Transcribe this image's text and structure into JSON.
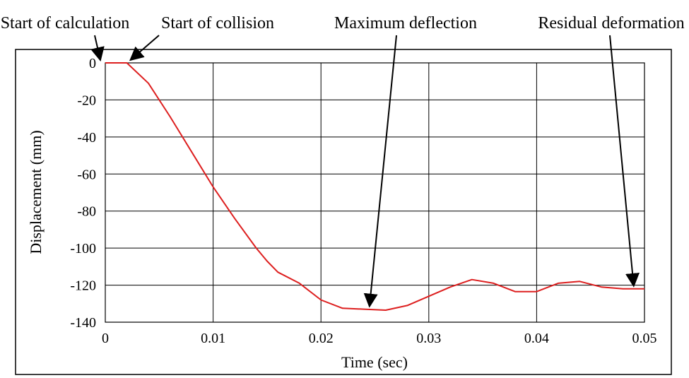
{
  "chart_data": {
    "type": "line",
    "xlabel": "Time (sec)",
    "ylabel": "Displacement (mm)",
    "xlim": [
      0,
      0.05
    ],
    "ylim": [
      -140,
      0
    ],
    "x_ticks": [
      0,
      0.01,
      0.02,
      0.03,
      0.04,
      0.05
    ],
    "x_tick_labels": [
      "0",
      "0.01",
      "0.02",
      "0.03",
      "0.04",
      "0.05"
    ],
    "y_ticks": [
      0,
      -20,
      -40,
      -60,
      -80,
      -100,
      -120,
      -140
    ],
    "y_tick_labels": [
      "0",
      "-20",
      "-40",
      "-60",
      "-80",
      "-100",
      "-120",
      "-140"
    ],
    "grid": true,
    "series": [
      {
        "color": "#dd1f1f",
        "x": [
          0,
          0.002,
          0.004,
          0.006,
          0.008,
          0.01,
          0.012,
          0.014,
          0.015,
          0.016,
          0.018,
          0.02,
          0.022,
          0.024,
          0.026,
          0.028,
          0.03,
          0.032,
          0.034,
          0.036,
          0.038,
          0.04,
          0.042,
          0.044,
          0.046,
          0.048,
          0.05
        ],
        "y": [
          0,
          0,
          -11,
          -29,
          -48,
          -67,
          -84,
          -100,
          -107,
          -113,
          -119,
          -128,
          -132.5,
          -133,
          -133.5,
          -131,
          -126,
          -121,
          -117,
          -119,
          -123.5,
          -123.5,
          -119,
          -118,
          -121,
          -122,
          -122
        ]
      }
    ],
    "annotations": [
      {
        "text": "Start of calculation",
        "point": [
          0,
          0
        ]
      },
      {
        "text": "Start of collision",
        "point": [
          0.002,
          0
        ]
      },
      {
        "text": "Maximum deflection",
        "point": [
          0.0245,
          -133
        ]
      },
      {
        "text": "Residual deformation",
        "point": [
          0.049,
          -122
        ]
      }
    ]
  }
}
